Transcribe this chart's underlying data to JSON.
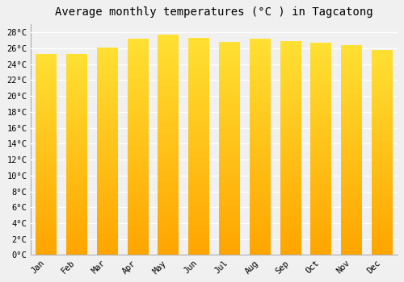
{
  "title": "Average monthly temperatures (°C ) in Tagcatong",
  "months": [
    "Jan",
    "Feb",
    "Mar",
    "Apr",
    "May",
    "Jun",
    "Jul",
    "Aug",
    "Sep",
    "Oct",
    "Nov",
    "Dec"
  ],
  "values": [
    25.2,
    25.2,
    26.0,
    27.1,
    27.6,
    27.2,
    26.7,
    27.1,
    26.8,
    26.6,
    26.3,
    25.7
  ],
  "bar_color_top": "#FFE033",
  "bar_color_bottom": "#FFA500",
  "ylim": [
    0,
    29
  ],
  "yticks": [
    0,
    2,
    4,
    6,
    8,
    10,
    12,
    14,
    16,
    18,
    20,
    22,
    24,
    26,
    28
  ],
  "background_color": "#f0f0f0",
  "grid_color": "#ffffff",
  "title_fontsize": 10,
  "tick_fontsize": 7.5,
  "title_font": "monospace",
  "tick_font": "monospace"
}
